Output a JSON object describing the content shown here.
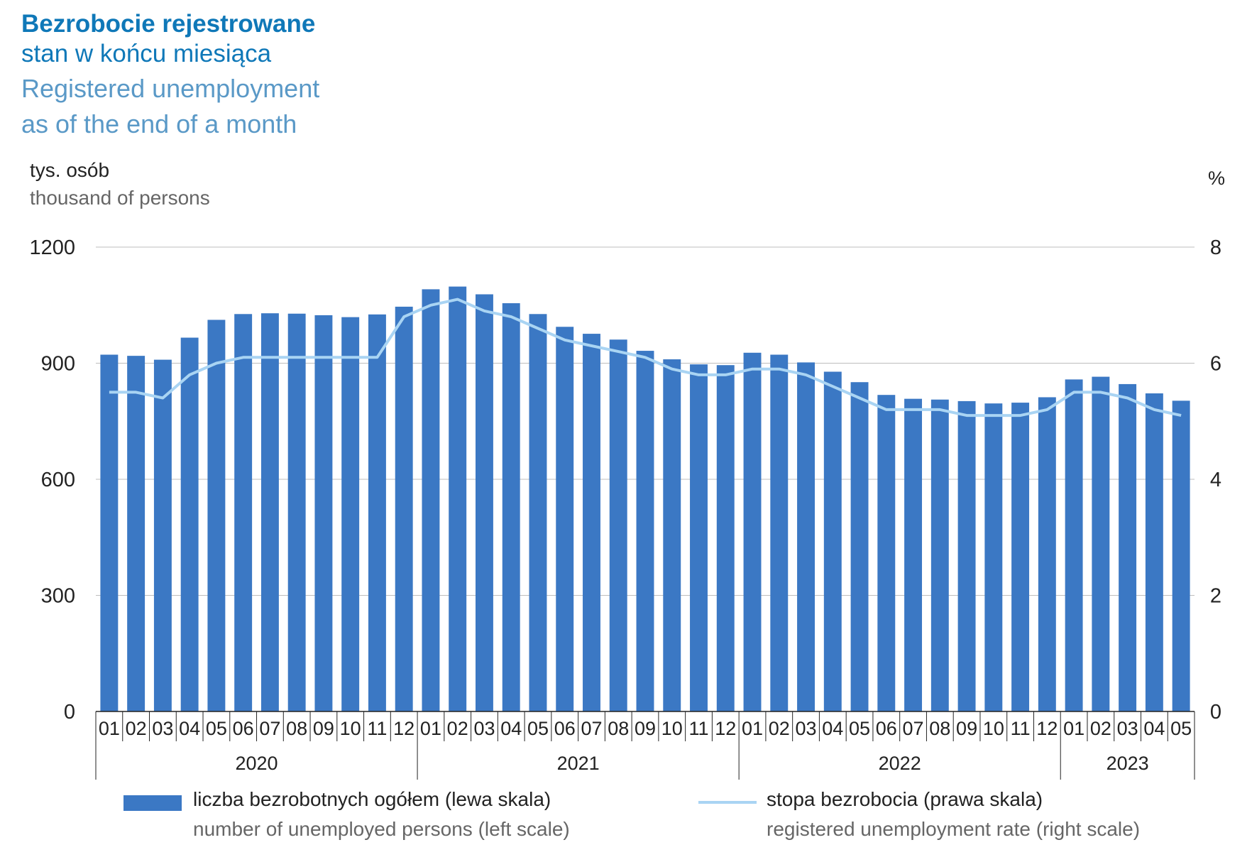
{
  "header": {
    "title": "Bezrobocie rejestrowane",
    "subtitle_pl": "stan w końcu miesiąca",
    "title_en_line1": "Registered unemployment",
    "title_en_line2": "as of the end of a month"
  },
  "axes": {
    "left_label_pl": "tys. osób",
    "left_label_en": "thousand of persons",
    "right_unit": "%"
  },
  "legend": {
    "bars_pl": "liczba bezrobotnych ogółem (lewa skala)",
    "bars_en": "number of unemployed persons (left scale)",
    "line_pl": "stopa bezrobocia (prawa skala)",
    "line_en": "registered unemployment rate (right scale)"
  },
  "colors": {
    "bars": "#3b78c4",
    "line": "#a9d4f3",
    "title": "#0f78b8",
    "title_en": "#5a99c7"
  },
  "chart_data": {
    "type": "bar",
    "months": [
      "01",
      "02",
      "03",
      "04",
      "05",
      "06",
      "07",
      "08",
      "09",
      "10",
      "11",
      "12",
      "01",
      "02",
      "03",
      "04",
      "05",
      "06",
      "07",
      "08",
      "09",
      "10",
      "11",
      "12",
      "01",
      "02",
      "03",
      "04",
      "05",
      "06",
      "07",
      "08",
      "09",
      "10",
      "11",
      "12",
      "01",
      "02",
      "03",
      "04",
      "05"
    ],
    "years": [
      {
        "label": "2020",
        "start": 0,
        "count": 12
      },
      {
        "label": "2021",
        "start": 12,
        "count": 12
      },
      {
        "label": "2022",
        "start": 24,
        "count": 12
      },
      {
        "label": "2023",
        "start": 36,
        "count": 5
      }
    ],
    "series": [
      {
        "name": "liczba bezrobotnych ogółem (lewa skala)",
        "type": "bar",
        "axis": "left",
        "values": [
          922,
          919,
          909,
          966,
          1012,
          1027,
          1029,
          1028,
          1024,
          1019,
          1026,
          1046,
          1091,
          1098,
          1078,
          1055,
          1027,
          994,
          976,
          961,
          932,
          910,
          897,
          895,
          927,
          922,
          902,
          878,
          851,
          818,
          808,
          806,
          802,
          796,
          798,
          812,
          858,
          865,
          846,
          822,
          803
        ]
      },
      {
        "name": "stopa bezrobocia (prawa skala)",
        "type": "line",
        "axis": "right",
        "values": [
          5.5,
          5.5,
          5.4,
          5.8,
          6.0,
          6.1,
          6.1,
          6.1,
          6.1,
          6.1,
          6.1,
          6.8,
          7.0,
          7.1,
          6.9,
          6.8,
          6.6,
          6.4,
          6.3,
          6.2,
          6.1,
          5.9,
          5.8,
          5.8,
          5.9,
          5.9,
          5.8,
          5.6,
          5.4,
          5.2,
          5.2,
          5.2,
          5.1,
          5.1,
          5.1,
          5.2,
          5.5,
          5.5,
          5.4,
          5.2,
          5.1
        ]
      }
    ],
    "left_ticks": [
      "0",
      "300",
      "600",
      "900",
      "1200"
    ],
    "right_ticks": [
      "0",
      "2",
      "4",
      "6",
      "8"
    ],
    "ylim_left": [
      0,
      1200
    ],
    "ylim_right": [
      0,
      8
    ],
    "grid": true
  }
}
